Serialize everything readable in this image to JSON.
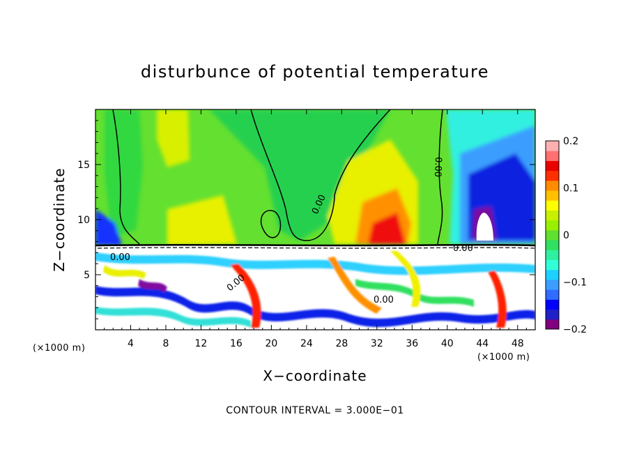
{
  "chart_data": {
    "type": "heatmap",
    "title": "disturbunce of potential temperature",
    "xlabel": "X−coordinate",
    "ylabel": "Z−coordinate",
    "x_unit": "(×1000 m)",
    "x_unit_right": "(×1000 m)",
    "xlim": [
      0,
      50
    ],
    "ylim": [
      0,
      20
    ],
    "x_ticks": [
      4,
      8,
      12,
      16,
      20,
      24,
      28,
      32,
      36,
      40,
      44,
      48
    ],
    "x_tick_labels": [
      "4",
      "8",
      "12",
      "16",
      "20",
      "24",
      "28",
      "32",
      "36",
      "40",
      "44",
      "48"
    ],
    "y_ticks": [
      5,
      10,
      15
    ],
    "y_tick_labels": [
      "5",
      "10",
      "15"
    ],
    "colorbar": {
      "range": [
        -0.2,
        0.2
      ],
      "ticks": [
        0.2,
        0.1,
        0,
        -0.1,
        -0.2
      ],
      "tick_labels": [
        "0.2",
        "0.1",
        "0",
        "−0.1",
        "−0.2"
      ],
      "colors": [
        "#800080",
        "#2020c8",
        "#0000ff",
        "#2f6cff",
        "#3b9eff",
        "#1ed0ff",
        "#30ffd8",
        "#2ff0a0",
        "#30e060",
        "#60e030",
        "#98f000",
        "#c8f000",
        "#ffff00",
        "#ffc000",
        "#ff8c00",
        "#ff3000",
        "#e80000",
        "#ff7070",
        "#ffb0b0"
      ]
    },
    "contour_labels": [
      "0.00",
      "0.00",
      "0.00",
      "0.00",
      "0.00",
      "0.00"
    ],
    "footer": "CONTOUR INTERVAL = 3.000E−01"
  }
}
